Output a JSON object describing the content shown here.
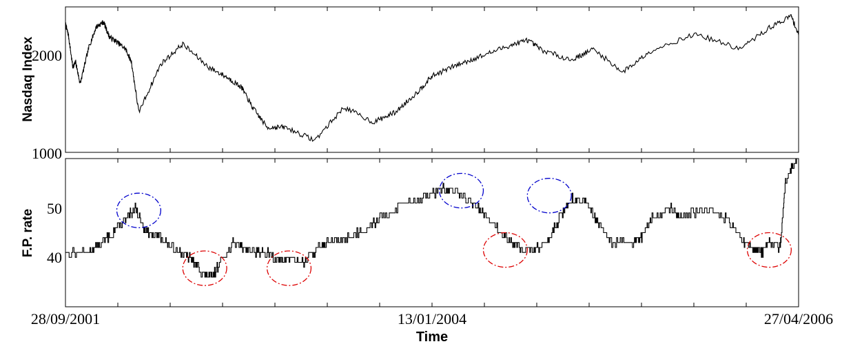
{
  "chart_data": [
    {
      "type": "line",
      "ylabel": "Nasdaq Index",
      "y_ticks": [
        "1000",
        "2000"
      ],
      "ylim": [
        1000,
        2450
      ],
      "x": [
        0,
        0.04,
        0.1,
        0.14,
        0.2,
        0.32,
        0.42,
        0.52,
        0.6,
        0.7,
        0.82,
        0.9,
        1.0,
        1.3,
        1.6,
        1.95,
        2.2,
        2.4,
        2.55,
        2.75,
        3.0,
        3.4,
        3.8,
        4.2,
        4.5,
        4.8,
        5.0,
        5.3,
        5.6,
        6.0,
        6.3,
        6.5,
        6.9,
        7.2,
        7.6,
        8.0,
        8.6,
        9.2,
        9.6,
        9.9,
        10.0
      ],
      "y": [
        2280,
        2170,
        1850,
        1900,
        1680,
        2050,
        2250,
        2300,
        2150,
        2100,
        2030,
        1900,
        1400,
        1880,
        2080,
        1850,
        1750,
        1650,
        1450,
        1250,
        1250,
        1120,
        1450,
        1300,
        1400,
        1600,
        1760,
        1860,
        1940,
        2050,
        2120,
        2020,
        1920,
        2030,
        1800,
        2020,
        2180,
        2030,
        2240,
        2360,
        2170
      ],
      "series": [
        {
          "values": [
            2280,
            2170,
            1850,
            1900,
            1680,
            2050,
            2250,
            2300,
            2150,
            2100,
            2030,
            1900,
            1400,
            1880,
            2080,
            1850,
            1750,
            1650,
            1450,
            1250,
            1250,
            1120,
            1450,
            1300,
            1400,
            1600,
            1760,
            1860,
            1940,
            2050,
            2120,
            2020,
            1920,
            2030,
            1800,
            2020,
            2180,
            2030,
            2240,
            2360,
            2170
          ]
        }
      ]
    },
    {
      "type": "line",
      "ylabel": "F.P. rate",
      "xlabel": "Time",
      "y_ticks": [
        "40",
        "50"
      ],
      "x_tick_labels": [
        "28/09/2001",
        "13/01/2004",
        "27/04/2006"
      ],
      "ylim": [
        30,
        60
      ],
      "x": [
        0,
        0.3,
        0.5,
        0.7,
        0.85,
        0.95,
        1.1,
        1.3,
        1.45,
        1.6,
        1.75,
        1.9,
        2.0,
        2.15,
        2.3,
        2.45,
        2.65,
        2.8,
        2.95,
        3.05,
        3.25,
        3.45,
        3.6,
        3.85,
        4.1,
        4.3,
        4.6,
        4.9,
        5.15,
        5.35,
        5.55,
        5.75,
        5.95,
        6.1,
        6.3,
        6.5,
        6.7,
        6.9,
        7.1,
        7.25,
        7.45,
        7.75,
        7.85,
        8.0,
        8.25,
        8.4,
        8.7,
        9.0,
        9.2,
        9.35,
        9.5,
        9.6,
        9.75,
        9.82,
        9.9,
        10.0
      ],
      "y": [
        41,
        41,
        43,
        46,
        48,
        50,
        45,
        44,
        42,
        41,
        39,
        36.5,
        36,
        40,
        43,
        42,
        41,
        40.5,
        39,
        40,
        39,
        42,
        43,
        44,
        46,
        48,
        51,
        52,
        54,
        53,
        51,
        48,
        45,
        43,
        41.5,
        42,
        47,
        52,
        51,
        47,
        43,
        43,
        44,
        48,
        50,
        48,
        50,
        48,
        44,
        42,
        41,
        43,
        42,
        55,
        58,
        61
      ],
      "series": [
        {
          "values": [
            41,
            41,
            43,
            46,
            48,
            50,
            45,
            44,
            42,
            41,
            39,
            36.5,
            36,
            40,
            43,
            42,
            41,
            40.5,
            39,
            40,
            39,
            42,
            43,
            44,
            46,
            48,
            51,
            52,
            54,
            53,
            51,
            48,
            45,
            43,
            41.5,
            42,
            47,
            52,
            51,
            47,
            43,
            43,
            44,
            48,
            50,
            48,
            50,
            48,
            44,
            42,
            41,
            43,
            42,
            55,
            58,
            61
          ]
        }
      ],
      "annotations": [
        {
          "type": "ellipse",
          "color": "#0000cc",
          "cx": 1.0,
          "cy": 49.5,
          "rx": 0.3,
          "ry": 3.5
        },
        {
          "type": "ellipse",
          "color": "#dd0000",
          "cx": 1.9,
          "cy": 37.8,
          "rx": 0.3,
          "ry": 3.5
        },
        {
          "type": "ellipse",
          "color": "#dd0000",
          "cx": 3.05,
          "cy": 37.8,
          "rx": 0.3,
          "ry": 3.5
        },
        {
          "type": "ellipse",
          "color": "#0000cc",
          "cx": 5.4,
          "cy": 53.5,
          "rx": 0.3,
          "ry": 3.5
        },
        {
          "type": "ellipse",
          "color": "#dd0000",
          "cx": 6.0,
          "cy": 41.5,
          "rx": 0.3,
          "ry": 3.5
        },
        {
          "type": "ellipse",
          "color": "#0000cc",
          "cx": 6.6,
          "cy": 52.5,
          "rx": 0.3,
          "ry": 3.5
        },
        {
          "type": "ellipse",
          "color": "#dd0000",
          "cx": 9.6,
          "cy": 41.5,
          "rx": 0.3,
          "ry": 3.5
        }
      ]
    }
  ]
}
